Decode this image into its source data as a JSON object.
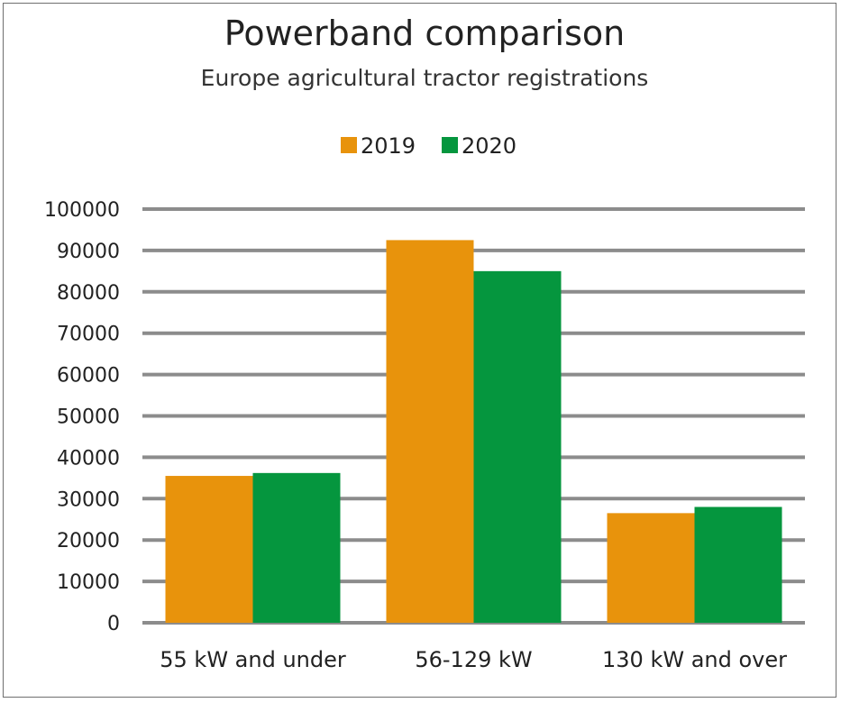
{
  "chart_data": {
    "type": "bar",
    "title": "Powerband comparison",
    "subtitle": "Europe agricultural tractor registrations",
    "categories": [
      "55 kW and under",
      "56-129 kW",
      "130 kW and over"
    ],
    "series": [
      {
        "name": "2019",
        "values": [
          35500,
          92500,
          26500
        ],
        "color": "#E8930C"
      },
      {
        "name": "2020",
        "values": [
          36200,
          85000,
          28000
        ],
        "color": "#05963E"
      }
    ],
    "ylim": [
      0,
      100000
    ],
    "yticks": [
      "0",
      "10000",
      "20000",
      "30000",
      "40000",
      "50000",
      "60000",
      "70000",
      "80000",
      "90000",
      "100000"
    ],
    "xlabel": "",
    "ylabel": "",
    "grid": true,
    "legend_position": "top-center",
    "gridline_color": "#8c8c8c"
  }
}
